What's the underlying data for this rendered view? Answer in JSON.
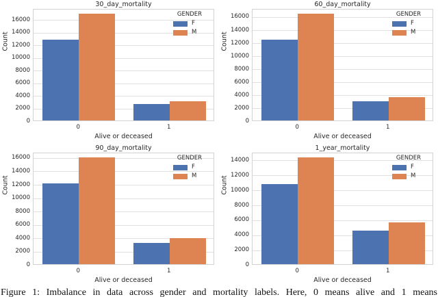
{
  "figure": {
    "caption": "Figure 1: Imbalance in data across gender and mortality labels. Here, 0 means alive and 1 means"
  },
  "colors": {
    "female_bar": "#4C72B0",
    "male_bar": "#DD8452",
    "gridline": "#E0E0E0",
    "spine": "#D2D2D2",
    "text": "#262626"
  },
  "legend": {
    "title": "GENDER",
    "entries": [
      "F",
      "M"
    ],
    "position": "upper right"
  },
  "chart_data": [
    {
      "type": "bar",
      "title": "30_day_mortality",
      "xlabel": "Alive or deceased",
      "ylabel": "Count",
      "categories": [
        "0",
        "1"
      ],
      "series": [
        {
          "name": "F",
          "color": "#4C72B0",
          "values": [
            12750,
            2550
          ]
        },
        {
          "name": "M",
          "color": "#DD8452",
          "values": [
            16850,
            3050
          ]
        }
      ],
      "ylim": [
        0,
        17700
      ],
      "yticks": [
        0,
        2000,
        4000,
        6000,
        8000,
        10000,
        12000,
        14000,
        16000
      ],
      "legend": {
        "title": "GENDER",
        "position": "upper right"
      },
      "grid": true
    },
    {
      "type": "bar",
      "title": "60_day_mortality",
      "xlabel": "Alive or deceased",
      "ylabel": "Count",
      "categories": [
        "0",
        "1"
      ],
      "series": [
        {
          "name": "F",
          "color": "#4C72B0",
          "values": [
            12350,
            2950
          ]
        },
        {
          "name": "M",
          "color": "#DD8452",
          "values": [
            16350,
            3550
          ]
        }
      ],
      "ylim": [
        0,
        17200
      ],
      "yticks": [
        0,
        2000,
        4000,
        6000,
        8000,
        10000,
        12000,
        14000,
        16000
      ],
      "legend": {
        "title": "GENDER",
        "position": "upper right"
      },
      "grid": true
    },
    {
      "type": "bar",
      "title": "90_day_mortality",
      "xlabel": "Alive or deceased",
      "ylabel": "Count",
      "categories": [
        "0",
        "1"
      ],
      "series": [
        {
          "name": "F",
          "color": "#4C72B0",
          "values": [
            12050,
            3150
          ]
        },
        {
          "name": "M",
          "color": "#DD8452",
          "values": [
            15950,
            3900
          ]
        }
      ],
      "ylim": [
        0,
        16750
      ],
      "yticks": [
        0,
        2000,
        4000,
        6000,
        8000,
        10000,
        12000,
        14000,
        16000
      ],
      "legend": {
        "title": "GENDER",
        "position": "upper right"
      },
      "grid": true
    },
    {
      "type": "bar",
      "title": "1_year_mortality",
      "xlabel": "Alive or deceased",
      "ylabel": "Count",
      "categories": [
        "0",
        "1"
      ],
      "series": [
        {
          "name": "F",
          "color": "#4C72B0",
          "values": [
            10750,
            4500
          ]
        },
        {
          "name": "M",
          "color": "#DD8452",
          "values": [
            14300,
            5600
          ]
        }
      ],
      "ylim": [
        0,
        15000
      ],
      "yticks": [
        0,
        2000,
        4000,
        6000,
        8000,
        10000,
        12000,
        14000
      ],
      "legend": {
        "title": "GENDER",
        "position": "upper right"
      },
      "grid": true
    }
  ]
}
